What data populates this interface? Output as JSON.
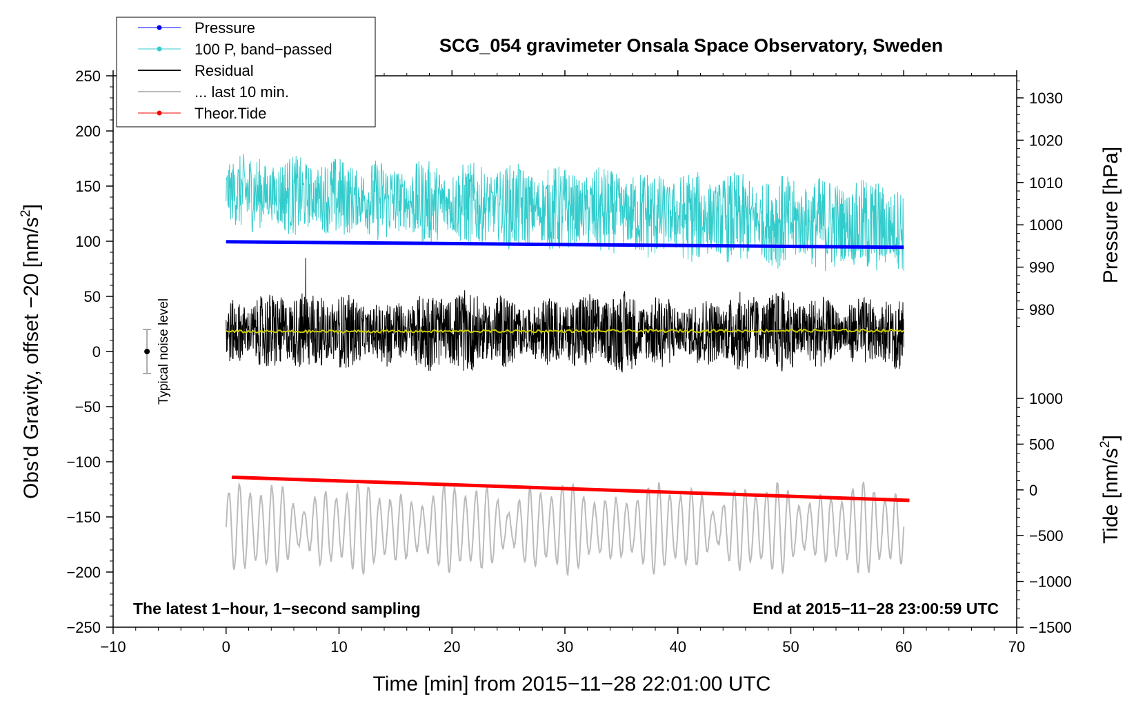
{
  "chart_data": {
    "type": "line",
    "title": "SCG_054 gravimeter Onsala Space Observatory, Sweden",
    "xlabel": "Time [min] from 2015−11−28 22:01:00 UTC",
    "ylabel_left": "Obs'd Gravity, offset −20 [nm/s",
    "ylabel_left_sup": "2",
    "ylabel_left_end": "]",
    "ylabel_pressure": "Pressure [hPa]",
    "ylabel_tide": "Tide [nm/s",
    "ylabel_tide_sup": "2",
    "ylabel_tide_end": "]",
    "xlim": [
      -10,
      70
    ],
    "ylim": [
      -250,
      250
    ],
    "x_ticks": [
      -10,
      0,
      10,
      20,
      30,
      40,
      50,
      60,
      70
    ],
    "x_tick_labels": [
      "−10",
      "0",
      "10",
      "20",
      "30",
      "40",
      "50",
      "60",
      "70"
    ],
    "y_ticks": [
      250,
      200,
      150,
      100,
      50,
      0,
      -50,
      -100,
      -150,
      -200,
      -250
    ],
    "y_tick_labels": [
      "250",
      "200",
      "150",
      "100",
      "50",
      "0",
      "−50",
      "−100",
      "−150",
      "−200",
      "−250"
    ],
    "pressure_ticks": [
      1030,
      1020,
      1010,
      1000,
      990,
      980
    ],
    "pressure_tick_labels": [
      "1030",
      "1020",
      "1010",
      "1000",
      "990",
      "980"
    ],
    "tide_ticks": [
      1000,
      500,
      0,
      -500,
      -1000,
      -1500
    ],
    "tide_tick_labels": [
      "1000",
      "500",
      "0",
      "−500",
      "−1000",
      "−1500"
    ],
    "annotation_left": "The latest 1−hour, 1−second sampling",
    "annotation_right": "End at 2015−11−28 23:00:59 UTC",
    "noise_label": "Typical noise level",
    "noise_bar": {
      "x": -7,
      "center": 0,
      "half_range": 20
    },
    "legend": [
      {
        "label": "Pressure",
        "color": "#0000ff",
        "marker": true
      },
      {
        "label": "100 P, band−passed",
        "color": "#33cccc",
        "marker": true
      },
      {
        "label": "Residual",
        "color": "#000000",
        "marker": false
      },
      {
        "label": "... last 10 min.",
        "color": "#bbbbbb",
        "marker": false
      },
      {
        "label": "Theor.Tide",
        "color": "#ff0000",
        "marker": true
      }
    ],
    "series": [
      {
        "name": "Pressure",
        "color": "#0000ff",
        "style": "thick",
        "x_range": [
          0,
          60
        ],
        "values_left_units": [
          99.5,
          94.5
        ]
      },
      {
        "name": "100 P, band−passed",
        "color": "#33cccc",
        "style": "noise",
        "x_range": [
          0,
          60
        ],
        "center_start": 145,
        "center_end": 112,
        "amplitude": 38
      },
      {
        "name": "Residual",
        "color": "#000000",
        "style": "noise",
        "x_range": [
          0,
          60
        ],
        "center": 18,
        "amplitude": 28
      },
      {
        "name": "Residual (smoothed)",
        "color": "#cccc00",
        "style": "flat",
        "x_range": [
          0,
          60
        ],
        "values_left_units": [
          18,
          19
        ]
      },
      {
        "name": "... last 10 min.",
        "color": "#bbbbbb",
        "style": "oscillation",
        "x_range": [
          0,
          60
        ],
        "center": -160,
        "amplitude": 35
      },
      {
        "name": "Theor.Tide",
        "color": "#ff0000",
        "style": "thick",
        "x_range": [
          0.5,
          60.5
        ],
        "values_left_units": [
          -114,
          -135
        ]
      }
    ]
  }
}
